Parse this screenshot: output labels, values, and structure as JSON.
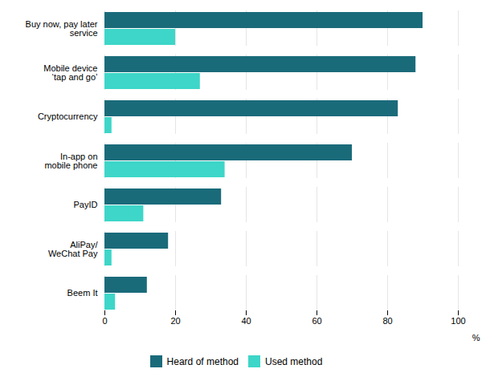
{
  "chart_data": {
    "type": "bar",
    "orientation": "horizontal",
    "categories": [
      "Buy now, pay later\nservice",
      "Mobile device\n‘tap and go’",
      "Cryptocurrency",
      "In-app on\nmobile phone",
      "PayID",
      "AliPay/\nWeChat Pay",
      "Beem It"
    ],
    "series": [
      {
        "name": "Heard of method",
        "color": "#1a6b7a",
        "values": [
          90,
          88,
          83,
          70,
          33,
          18,
          12
        ]
      },
      {
        "name": "Used method",
        "color": "#3dd6c8",
        "values": [
          20,
          27,
          2,
          34,
          11,
          2,
          3
        ]
      }
    ],
    "xlabel": "%",
    "xlim": [
      0,
      100
    ],
    "xticks": [
      0,
      20,
      40,
      60,
      80,
      100
    ],
    "grid": true,
    "legend": "bottom"
  }
}
